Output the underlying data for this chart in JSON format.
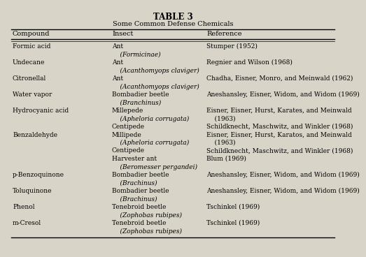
{
  "title": "TABLE 3",
  "subtitle": "Some Common Defense Chemicals",
  "columns": [
    "Compound",
    "Insect",
    "Reference"
  ],
  "bg_color": "#d8d4c8",
  "rows": [
    {
      "compound": "Formic acid",
      "insect_lines": [
        "Ant",
        "    (Formicinae)"
      ],
      "insect_italic": [
        false,
        true
      ],
      "ref_lines": [
        "Stumper (1952)",
        ""
      ],
      "ref_italic": [
        false,
        false
      ]
    },
    {
      "compound": "Undecane",
      "insect_lines": [
        "Ant",
        "    (Acanthomyops claviger)"
      ],
      "insect_italic": [
        false,
        true
      ],
      "ref_lines": [
        "Regnier and Wilson (1968)",
        ""
      ],
      "ref_italic": [
        false,
        false
      ]
    },
    {
      "compound": "Citronellal",
      "insect_lines": [
        "Ant",
        "    (Acanthomyops claviger)"
      ],
      "insect_italic": [
        false,
        true
      ],
      "ref_lines": [
        "Chadha, Eisner, Monro, and Meinwald (1962)",
        ""
      ],
      "ref_italic": [
        false,
        false
      ]
    },
    {
      "compound": "Water vapor",
      "insect_lines": [
        "Bombadier beetle",
        "    (Branchinus)"
      ],
      "insect_italic": [
        false,
        true
      ],
      "ref_lines": [
        "Aneshansley, Eisner, Widom, and Widom (1969)",
        ""
      ],
      "ref_italic": [
        false,
        false
      ]
    },
    {
      "compound": "Hydrocyanic acid",
      "insect_lines": [
        "Millepede",
        "    (Apheloria corrugata)",
        "Centipede"
      ],
      "insect_italic": [
        false,
        true,
        false
      ],
      "ref_lines": [
        "Eisner, Eisner, Hurst, Karates, and Meinwald",
        "    (1963)",
        "Schildknecht, Maschwitz, and Winkler (1968)"
      ],
      "ref_italic": [
        false,
        false,
        false
      ]
    },
    {
      "compound": "Benzaldehyde",
      "insect_lines": [
        "Millipede",
        "    (Apheloria corrugata)",
        "Centipede",
        "Harvester ant",
        "    (Beromesser pergandei)"
      ],
      "insect_italic": [
        false,
        true,
        false,
        false,
        true
      ],
      "ref_lines": [
        "Eisner, Eisner, Hurst, Karatos, and Meinwald",
        "    (1963)",
        "Schildknecht, Maschwitz, and Winkler (1968)",
        "Blum (1969)",
        ""
      ],
      "ref_italic": [
        false,
        false,
        false,
        false,
        false
      ]
    },
    {
      "compound": "p-Benzoquinone",
      "insect_lines": [
        "Bombadier beetle",
        "    (Brachinus)"
      ],
      "insect_italic": [
        false,
        true
      ],
      "ref_lines": [
        "Aneshansley, Eisner, Widom, and Widom (1969)",
        ""
      ],
      "ref_italic": [
        false,
        false
      ]
    },
    {
      "compound": "Toluquinone",
      "insect_lines": [
        "Bombadier beetle",
        "    (Brachinus)"
      ],
      "insect_italic": [
        false,
        true
      ],
      "ref_lines": [
        "Aneshansley, Eisner, Widom, and Widom (1969)",
        ""
      ],
      "ref_italic": [
        false,
        false
      ]
    },
    {
      "compound": "Phenol",
      "insect_lines": [
        "Tenebroid beetle",
        "    (Zophobas rubipes)"
      ],
      "insect_italic": [
        false,
        true
      ],
      "ref_lines": [
        "Tschinkel (1969)",
        ""
      ],
      "ref_italic": [
        false,
        false
      ]
    },
    {
      "compound": "m-Cresol",
      "insect_lines": [
        "Tenebroid beetle",
        "    (Zophobas rubipes)"
      ],
      "insect_italic": [
        false,
        true
      ],
      "ref_lines": [
        "Tschinkel (1969)",
        ""
      ],
      "ref_italic": [
        false,
        false
      ]
    }
  ]
}
